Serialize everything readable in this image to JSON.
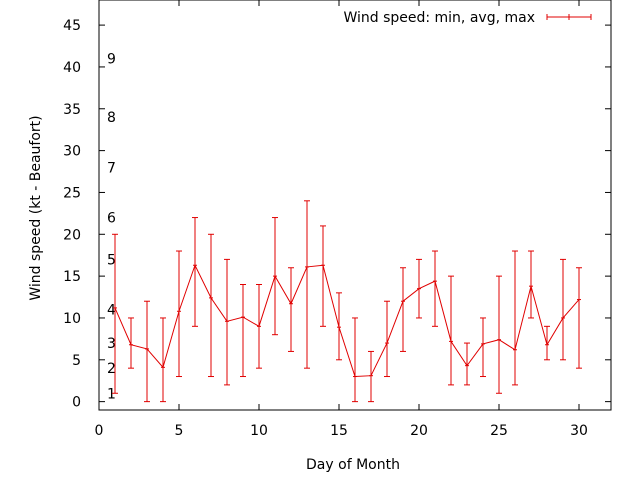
{
  "chart_data": {
    "type": "line",
    "series_style": "errorbars",
    "xlabel": "Day of Month",
    "ylabel": "Wind speed (kt - Beaufort)",
    "xlim": [
      0,
      32
    ],
    "ylim": [
      -1,
      48
    ],
    "xticks": [
      0,
      5,
      10,
      15,
      20,
      25,
      30
    ],
    "yticks": [
      0,
      5,
      10,
      15,
      20,
      25,
      30,
      35,
      40,
      45
    ],
    "grid": false,
    "legend_position": "top-right",
    "color": "#e00000",
    "beaufort_labels": [
      {
        "label": "1",
        "kt": 1
      },
      {
        "label": "2",
        "kt": 4
      },
      {
        "label": "3",
        "kt": 7
      },
      {
        "label": "4",
        "kt": 11
      },
      {
        "label": "5",
        "kt": 17
      },
      {
        "label": "6",
        "kt": 22
      },
      {
        "label": "7",
        "kt": 28
      },
      {
        "label": "8",
        "kt": 34
      },
      {
        "label": "9",
        "kt": 41
      }
    ],
    "series": [
      {
        "name": "Wind speed: min, avg, max",
        "x": [
          1,
          2,
          3,
          4,
          5,
          6,
          7,
          8,
          9,
          10,
          11,
          12,
          13,
          14,
          15,
          16,
          17,
          18,
          19,
          20,
          21,
          22,
          23,
          24,
          25,
          26,
          27,
          28,
          29,
          30
        ],
        "min": [
          1,
          4,
          0,
          0,
          3,
          9,
          3,
          2,
          3,
          4,
          8,
          6,
          4,
          9,
          5,
          0,
          0,
          3,
          6,
          10,
          9,
          2,
          2,
          3,
          1,
          2,
          10,
          5,
          5,
          4
        ],
        "avg": [
          11.2,
          6.8,
          6.3,
          4.1,
          10.8,
          16.3,
          12.4,
          9.6,
          10.1,
          9.0,
          15.0,
          11.7,
          16.1,
          16.3,
          8.9,
          3.0,
          3.1,
          7.0,
          12.0,
          13.5,
          14.4,
          7.2,
          4.3,
          6.9,
          7.4,
          6.2,
          13.8,
          6.8,
          10.0,
          12.2
        ],
        "max": [
          20,
          10,
          12,
          10,
          18,
          22,
          20,
          17,
          14,
          14,
          22,
          16,
          24,
          21,
          13,
          10,
          6,
          12,
          16,
          17,
          18,
          15,
          7,
          10,
          15,
          18,
          18,
          9,
          17,
          16
        ]
      }
    ]
  }
}
